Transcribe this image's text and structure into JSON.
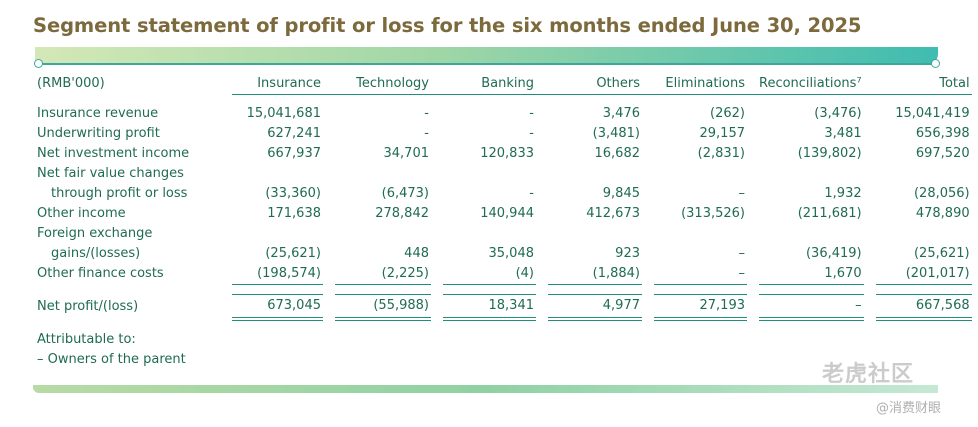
{
  "title": "Segment statement of profit or loss for the six months ended June 30, 2025",
  "header": {
    "unit": "(RMB'000)",
    "columns": [
      "Insurance",
      "Technology",
      "Banking",
      "Others",
      "Eliminations",
      "Reconciliations⁷",
      "Total"
    ]
  },
  "rows": [
    {
      "label": "Insurance revenue",
      "values": [
        "15,041,681",
        "-",
        "-",
        "3,476",
        "(262)",
        "(3,476)",
        "15,041,419"
      ]
    },
    {
      "label": "Underwriting profit",
      "values": [
        "627,241",
        "-",
        "-",
        "(3,481)",
        "29,157",
        "3,481",
        "656,398"
      ]
    },
    {
      "label": "Net investment income",
      "values": [
        "667,937",
        "34,701",
        "120,833",
        "16,682",
        "(2,831)",
        "(139,802)",
        "697,520"
      ]
    },
    {
      "label": "Net fair value changes",
      "values": [
        "",
        "",
        "",
        "",
        "",
        "",
        ""
      ]
    },
    {
      "label": "through profit or loss",
      "values": [
        "(33,360)",
        "(6,473)",
        "-",
        "9,845",
        "–",
        "1,932",
        "(28,056)"
      ]
    },
    {
      "label": "Other income",
      "values": [
        "171,638",
        "278,842",
        "140,944",
        "412,673",
        "(313,526)",
        "(211,681)",
        "478,890"
      ]
    },
    {
      "label": "Foreign exchange",
      "values": [
        "",
        "",
        "",
        "",
        "",
        "",
        ""
      ]
    },
    {
      "label": "gains/(losses)",
      "values": [
        "(25,621)",
        "448",
        "35,048",
        "923",
        "–",
        "(36,419)",
        "(25,621)"
      ]
    },
    {
      "label": "Other finance costs",
      "values": [
        "(198,574)",
        "(2,225)",
        "(4)",
        "(1,884)",
        "–",
        "1,670",
        "(201,017)"
      ]
    }
  ],
  "total": {
    "label": "Net profit/(loss)",
    "values": [
      "673,045",
      "(55,988)",
      "18,341",
      "4,977",
      "27,193",
      "–",
      "667,568"
    ]
  },
  "attributable": {
    "label": "Attributable to:",
    "owners": "– Owners of the parent"
  },
  "watermarks": {
    "top": "老虎社区",
    "bottom": "@消费财眼"
  },
  "colors": {
    "title": "#7d6a3c",
    "text": "#1f6b54",
    "rule": "#1f8f7c",
    "bar_start": "#d4e8b6",
    "bar_end": "#3fbcb0"
  }
}
